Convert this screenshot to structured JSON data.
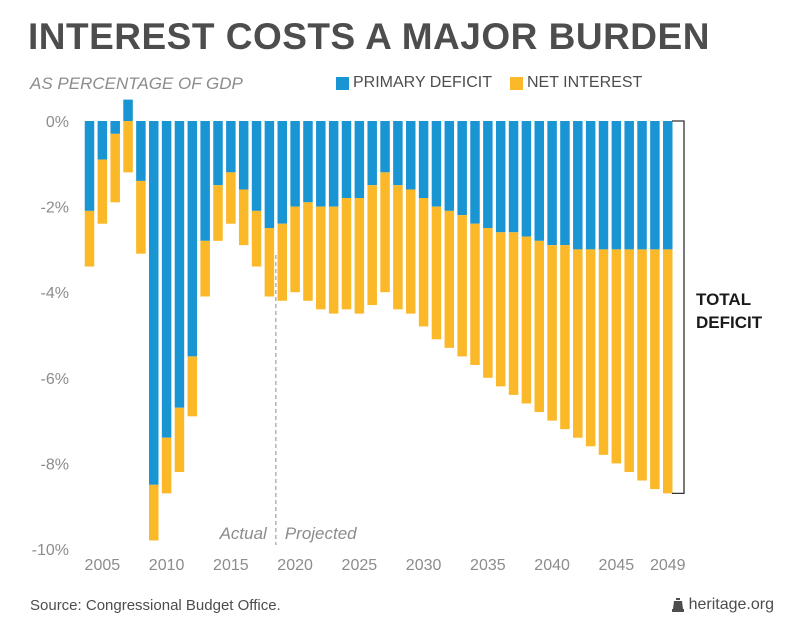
{
  "header": {
    "title": "INTEREST COSTS A MAJOR BURDEN",
    "subtitle": "AS PERCENTAGE OF GDP"
  },
  "footer": {
    "source": "Source: Congressional Budget Office.",
    "brand": "heritage.org"
  },
  "chart_data": {
    "type": "bar",
    "stacked": true,
    "ylim": [
      -10,
      0
    ],
    "y_ticks": [
      0,
      -2,
      -4,
      -6,
      -8,
      -10
    ],
    "y_tick_labels": [
      "0%",
      "-2%",
      "-4%",
      "-6%",
      "-8%",
      "-10%"
    ],
    "x_tick_labels": [
      {
        "year": 2005,
        "label": "2005"
      },
      {
        "year": 2010,
        "label": "2010"
      },
      {
        "year": 2015,
        "label": "2015"
      },
      {
        "year": 2020,
        "label": "2020"
      },
      {
        "year": 2025,
        "label": "2025"
      },
      {
        "year": 2030,
        "label": "2030"
      },
      {
        "year": 2035,
        "label": "2035"
      },
      {
        "year": 2040,
        "label": "2040"
      },
      {
        "year": 2045,
        "label": "2045"
      },
      {
        "year": 2049,
        "label": "2049"
      }
    ],
    "legend_position": "top-right",
    "colors": {
      "primary_deficit": "#1a95d3",
      "net_interest": "#fbb829",
      "axis_text": "#8c8c8c"
    },
    "divider_between_years": [
      2018,
      2019
    ],
    "divider_labels": {
      "left": "Actual",
      "right": "Projected"
    },
    "bracket_label": [
      "TOTAL",
      "DEFICIT"
    ],
    "categories": [
      2004,
      2005,
      2006,
      2007,
      2008,
      2009,
      2010,
      2011,
      2012,
      2013,
      2014,
      2015,
      2016,
      2017,
      2018,
      2019,
      2020,
      2021,
      2022,
      2023,
      2024,
      2025,
      2026,
      2027,
      2028,
      2029,
      2030,
      2031,
      2032,
      2033,
      2034,
      2035,
      2036,
      2037,
      2038,
      2039,
      2040,
      2041,
      2042,
      2043,
      2044,
      2045,
      2046,
      2047,
      2048,
      2049
    ],
    "series": [
      {
        "name": "PRIMARY DEFICIT",
        "values": [
          -2.1,
          -0.9,
          -0.3,
          0.5,
          -1.4,
          -8.5,
          -7.4,
          -6.7,
          -5.5,
          -2.8,
          -1.5,
          -1.2,
          -1.6,
          -2.1,
          -2.5,
          -2.4,
          -2.0,
          -1.9,
          -2.0,
          -2.0,
          -1.8,
          -1.8,
          -1.5,
          -1.2,
          -1.5,
          -1.6,
          -1.8,
          -2.0,
          -2.1,
          -2.2,
          -2.4,
          -2.5,
          -2.6,
          -2.6,
          -2.7,
          -2.8,
          -2.9,
          -2.9,
          -3.0,
          -3.0,
          -3.0,
          -3.0,
          -3.0,
          -3.0,
          -3.0,
          -3.0
        ]
      },
      {
        "name": "NET INTEREST",
        "values": [
          -1.3,
          -1.5,
          -1.6,
          -1.2,
          -1.7,
          -1.3,
          -1.3,
          -1.5,
          -1.4,
          -1.3,
          -1.3,
          -1.2,
          -1.3,
          -1.3,
          -1.6,
          -1.8,
          -2.0,
          -2.3,
          -2.4,
          -2.5,
          -2.6,
          -2.7,
          -2.8,
          -2.8,
          -2.9,
          -2.9,
          -3.0,
          -3.1,
          -3.2,
          -3.3,
          -3.3,
          -3.5,
          -3.6,
          -3.8,
          -3.9,
          -4.0,
          -4.1,
          -4.3,
          -4.4,
          -4.6,
          -4.8,
          -5.0,
          -5.2,
          -5.4,
          -5.6,
          -5.7
        ]
      }
    ]
  }
}
